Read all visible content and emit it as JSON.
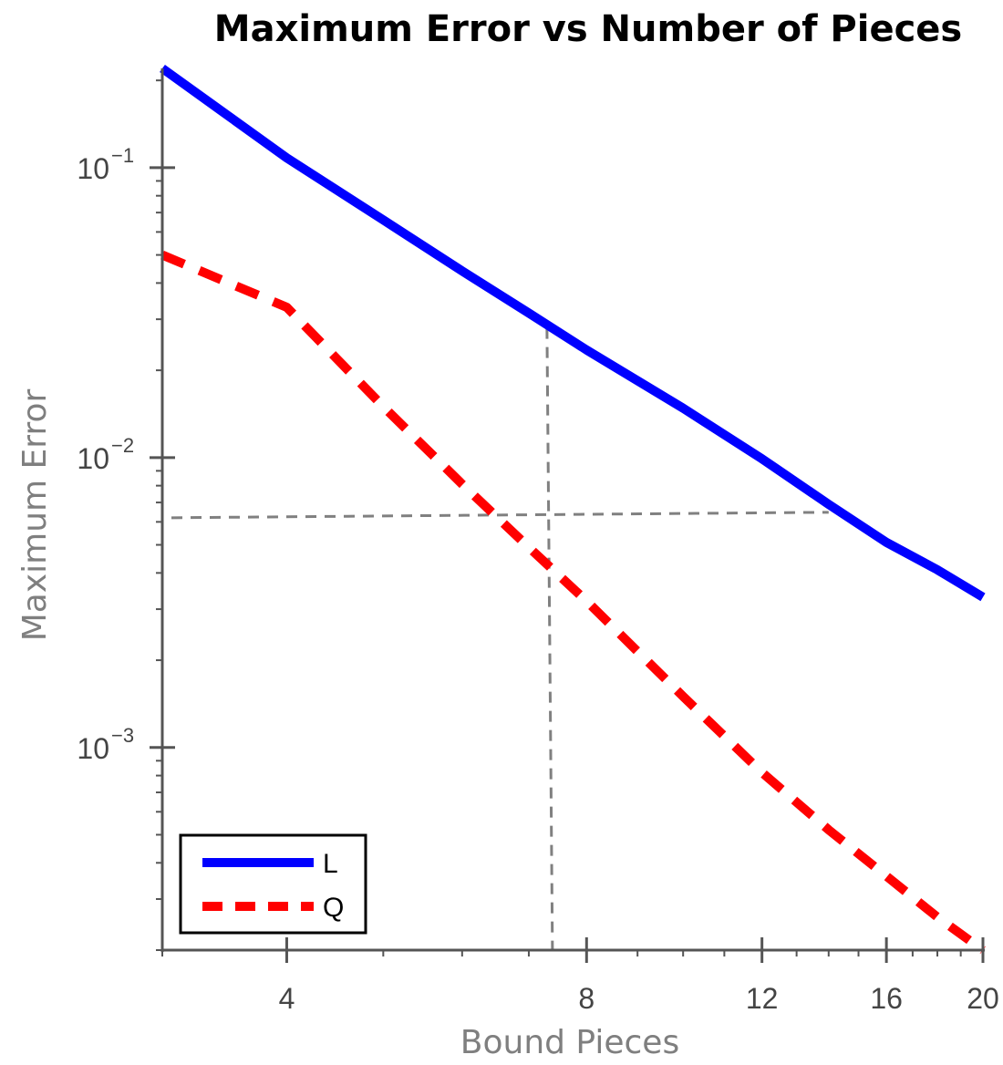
{
  "chart_data": {
    "type": "line",
    "title": "Maximum Error vs Number of Pieces",
    "xlabel": "Bound Pieces",
    "ylabel": "Maximum Error",
    "x_scale": "log",
    "y_scale": "log",
    "xlim": [
      3,
      20
    ],
    "ylim": [
      0.0002,
      0.22
    ],
    "x_ticks": [
      4,
      8,
      12,
      16,
      20
    ],
    "y_ticks": [
      {
        "value": 0.1,
        "base": "10",
        "exp": "-1"
      },
      {
        "value": 0.01,
        "base": "10",
        "exp": "-2"
      },
      {
        "value": 0.001,
        "base": "10",
        "exp": "-3"
      }
    ],
    "series": [
      {
        "name": "L",
        "color": "#0000ff",
        "style": "solid",
        "x": [
          3,
          4,
          5,
          6,
          7,
          8,
          10,
          12,
          14,
          16,
          18,
          20
        ],
        "y": [
          0.22,
          0.108,
          0.066,
          0.044,
          0.0315,
          0.0235,
          0.0148,
          0.0099,
          0.0069,
          0.0051,
          0.0041,
          0.0033
        ]
      },
      {
        "name": "Q",
        "color": "#ff0000",
        "style": "dashed",
        "x": [
          3,
          4,
          5,
          6,
          7,
          8,
          10,
          12,
          14,
          16,
          18,
          20
        ],
        "y": [
          0.05,
          0.033,
          0.015,
          0.0081,
          0.0049,
          0.0032,
          0.0015,
          0.00082,
          0.00052,
          0.00036,
          0.00026,
          0.0002
        ]
      }
    ],
    "reference_lines": [
      {
        "orientation": "vertical",
        "x": 7.3,
        "y_range": [
          0.0002,
          0.028
        ],
        "color": "#808080",
        "style": "dashed"
      },
      {
        "orientation": "horizontal",
        "y": 0.0062,
        "x_range": [
          3,
          14
        ],
        "color": "#808080",
        "style": "dashed"
      }
    ],
    "legend_position": "bottom-left",
    "grid": false
  }
}
